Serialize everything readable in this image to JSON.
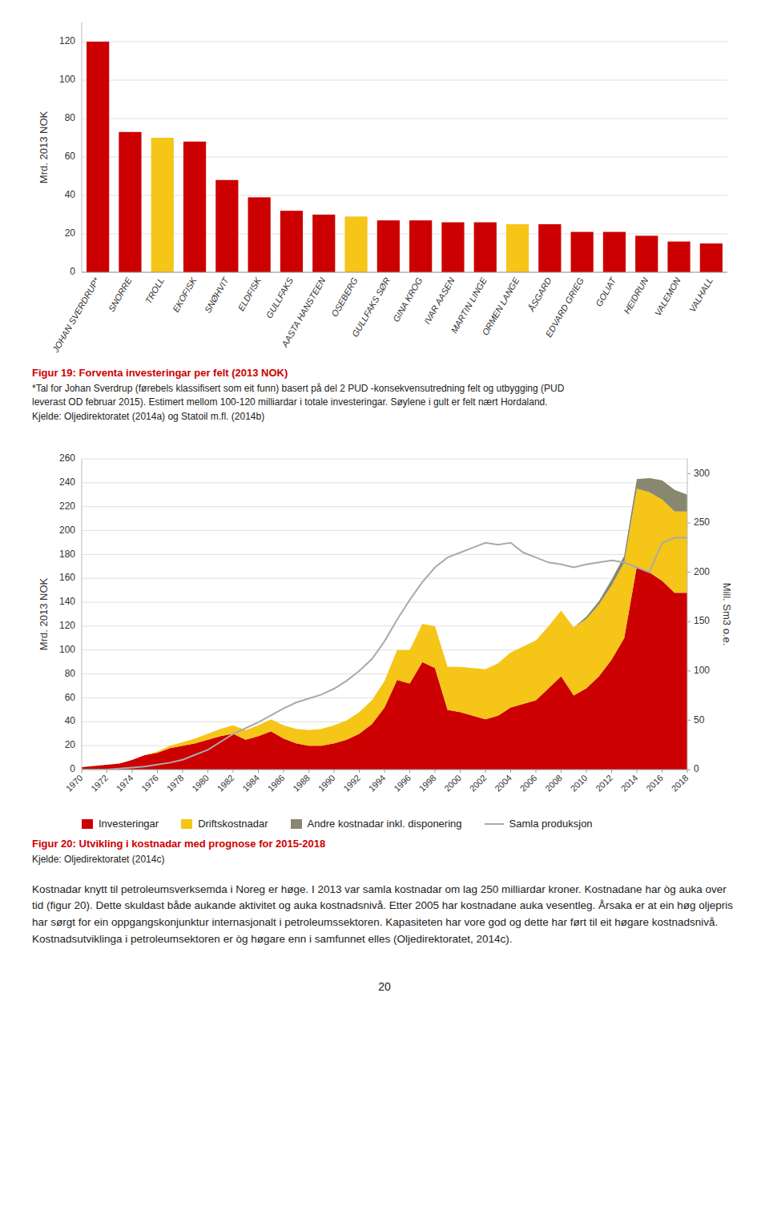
{
  "chart_data": [
    {
      "type": "bar",
      "title": "Figur 19: Forventa investeringar per felt (2013 NOK)",
      "annotations": [
        "*Tal for Johan Sverdrup (førebels klassifisert som eit funn) basert på del 2 PUD  -konsekvensutredning felt og utbygging (PUD",
        "leverast OD februar 2015). Estimert mellom 100-120 milliardar i totale investeringar. Søylene i gult er felt nært Hordaland.",
        "Kjelde: Oljedirektoratet (2014a) og Statoil m.fl. (2014b)"
      ],
      "categories": [
        "JOHAN SVERDRUP*",
        "SNORRE",
        "TROLL",
        "EKOFISK",
        "SNØHVIT",
        "ELDFISK",
        "GULLFAKS",
        "AASTA HANSTEEN",
        "OSEBERG",
        "GULLFAKS SØR",
        "GINA KROG",
        "IVAR AASEN",
        "MARTIN LINGE",
        "ORMEN LANGE",
        "ÅSGARD",
        "EDVARD GRIEG",
        "GOLIAT",
        "HEIDRUN",
        "VALEMON",
        "VALHALL"
      ],
      "values": [
        120,
        73,
        70,
        68,
        48,
        39,
        32,
        30,
        29,
        27,
        27,
        26,
        26,
        25,
        25,
        21,
        21,
        19,
        16,
        15
      ],
      "colors": [
        "#cc0000",
        "#cc0000",
        "#f5c518",
        "#cc0000",
        "#cc0000",
        "#cc0000",
        "#cc0000",
        "#cc0000",
        "#f5c518",
        "#cc0000",
        "#cc0000",
        "#cc0000",
        "#cc0000",
        "#f5c518",
        "#cc0000",
        "#cc0000",
        "#cc0000",
        "#cc0000",
        "#cc0000",
        "#cc0000"
      ],
      "ylabel": "Mrd. 2013 NOK",
      "ylim": [
        0,
        130
      ],
      "yticks": [
        0,
        20,
        40,
        60,
        80,
        100,
        120
      ],
      "grid": true
    },
    {
      "type": "area",
      "stacked": true,
      "title": "Figur 20: Utvikling i kostnadar med prognose for 2015-2018",
      "annotations": [
        "Kjelde: Oljedirektoratet (2014c)",
        "Kostnadar knytt til petroleumsverksemda i Noreg er høge. I 2013 var samla kostnadar om lag 250 milliardar kroner. Kostnadane har òg auka over tid (figur 20). Dette skuldast både aukande aktivitet og auka kostnadsnivå. Etter 2005 har kostnadane auka vesentleg. Årsaka er at ein høg oljepris har sørgt for ein oppgangskonjunktur internasjonalt i petroleumssektoren. Kapasiteten har vore god og dette har ført til eit høgare kostnadsnivå. Kostnadsutviklinga i petroleumsektoren er òg høgare enn i samfunnet elles (Oljedirektoratet, 2014c).",
        "20"
      ],
      "x": [
        1970,
        1971,
        1972,
        1973,
        1974,
        1975,
        1976,
        1977,
        1978,
        1979,
        1980,
        1981,
        1982,
        1983,
        1984,
        1985,
        1986,
        1987,
        1988,
        1989,
        1990,
        1991,
        1992,
        1993,
        1994,
        1995,
        1996,
        1997,
        1998,
        1999,
        2000,
        2001,
        2002,
        2003,
        2004,
        2005,
        2006,
        2007,
        2008,
        2009,
        2010,
        2011,
        2012,
        2013,
        2014,
        2015,
        2016,
        2017,
        2018
      ],
      "xlim": [
        1970,
        2018
      ],
      "xticks": [
        1970,
        1972,
        1974,
        1976,
        1978,
        1980,
        1982,
        1984,
        1986,
        1988,
        1990,
        1992,
        1994,
        1996,
        1998,
        2000,
        2002,
        2004,
        2006,
        2008,
        2010,
        2012,
        2014,
        2016,
        2018
      ],
      "series": [
        {
          "name": "Investeringar",
          "color": "#cc0000",
          "values": [
            2,
            3,
            4,
            5,
            8,
            12,
            14,
            18,
            20,
            22,
            25,
            28,
            30,
            25,
            28,
            32,
            26,
            22,
            20,
            20,
            22,
            25,
            30,
            38,
            52,
            75,
            72,
            90,
            85,
            50,
            48,
            45,
            42,
            45,
            52,
            55,
            58,
            68,
            78,
            62,
            68,
            78,
            92,
            110,
            170,
            165,
            158,
            148,
            148
          ]
        },
        {
          "name": "Driftskostnadar",
          "color": "#f5c518",
          "values": [
            0,
            0,
            0,
            0,
            0,
            0,
            1,
            2,
            3,
            4,
            5,
            6,
            7,
            8,
            9,
            10,
            11,
            12,
            13,
            14,
            15,
            16,
            18,
            20,
            22,
            25,
            28,
            32,
            35,
            36,
            38,
            40,
            42,
            44,
            46,
            48,
            50,
            52,
            55,
            57,
            58,
            60,
            62,
            63,
            65,
            67,
            68,
            68,
            68
          ]
        },
        {
          "name": "Andre kostnadar inkl. disponering",
          "color": "#888870",
          "values": [
            0,
            0,
            0,
            0,
            0,
            0,
            0,
            0,
            0,
            0,
            0,
            0,
            0,
            0,
            0,
            0,
            0,
            0,
            0,
            0,
            0,
            0,
            0,
            0,
            0,
            0,
            0,
            0,
            0,
            0,
            0,
            0,
            0,
            0,
            0,
            0,
            0,
            0,
            0,
            0,
            2,
            3,
            5,
            6,
            8,
            12,
            16,
            18,
            14
          ]
        },
        {
          "name": "Samla produksjon",
          "type": "line",
          "axis": "y2",
          "color": "#aaaaaa",
          "values": [
            0,
            0,
            0,
            1,
            2,
            3,
            5,
            7,
            10,
            15,
            20,
            28,
            36,
            42,
            48,
            55,
            62,
            68,
            72,
            76,
            82,
            90,
            100,
            112,
            130,
            152,
            172,
            190,
            205,
            215,
            220,
            225,
            230,
            228,
            230,
            220,
            215,
            210,
            208,
            205,
            208,
            210,
            212,
            210,
            205,
            200,
            230,
            235,
            235
          ]
        }
      ],
      "ylabel": "Mrd. 2013 NOK",
      "y2label": "Mill. Sm3 o.e.",
      "ylim": [
        0,
        260
      ],
      "yticks": [
        0,
        20,
        40,
        60,
        80,
        100,
        120,
        140,
        160,
        180,
        200,
        220,
        240,
        260
      ],
      "y2lim": [
        0,
        315
      ],
      "y2ticks": [
        0,
        50,
        100,
        150,
        200,
        250,
        300
      ],
      "grid": true,
      "legend": "bottom"
    }
  ]
}
